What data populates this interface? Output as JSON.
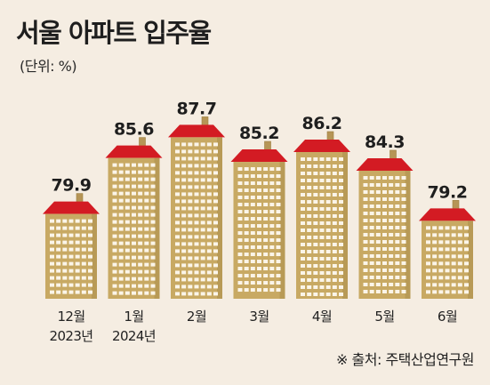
{
  "title": "서울 아파트 입주율",
  "unit": "(단위: %)",
  "source": "※ 출처: 주택산업연구원",
  "colors": {
    "background": "#f5ede2",
    "building": "#c8a963",
    "building_dark": "#9c7f40",
    "window": "#fbf5e9",
    "roof": "#d31b23",
    "chimney": "#b69556"
  },
  "chart_data": {
    "type": "bar",
    "categories": [
      "12월\n2023년",
      "1월\n2024년",
      "2월",
      "3월",
      "4월",
      "5월",
      "6월"
    ],
    "values": [
      79.9,
      85.6,
      87.7,
      85.2,
      86.2,
      84.3,
      79.2
    ],
    "value_labels": [
      "79.9",
      "85.6",
      "87.7",
      "85.2",
      "86.2",
      "84.3",
      "79.2"
    ],
    "title": "서울 아파트 입주율",
    "xlabel": "",
    "ylabel": "",
    "ylim": [
      70,
      90
    ],
    "grid": false,
    "legend": "none"
  }
}
